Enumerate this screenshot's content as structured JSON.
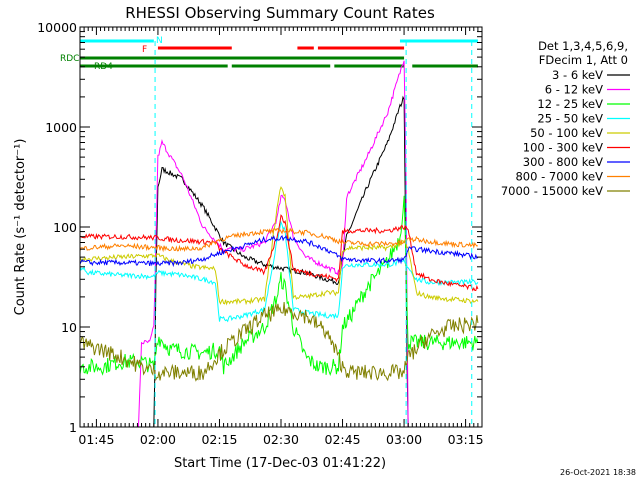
{
  "chart_data": {
    "type": "line",
    "title": "RHESSI Observing Summary Count Rates",
    "xlabel": "Start Time (17-Dec-03 01:41:22)",
    "ylabel": "Count Rate (s⁻¹ detector⁻¹)",
    "ylim": [
      1,
      10000
    ],
    "yscale": "log",
    "xlim_minutes": [
      0,
      98
    ],
    "x_ticks": [
      {
        "m": 4,
        "label": "01:45"
      },
      {
        "m": 19,
        "label": "02:00"
      },
      {
        "m": 34,
        "label": "02:15"
      },
      {
        "m": 49,
        "label": "02:30"
      },
      {
        "m": 64,
        "label": "02:45"
      },
      {
        "m": 79,
        "label": "03:00"
      },
      {
        "m": 94,
        "label": "03:15"
      }
    ],
    "y_ticks": [
      {
        "v": 1,
        "label": "1"
      },
      {
        "v": 10,
        "label": "10"
      },
      {
        "v": 100,
        "label": "100"
      },
      {
        "v": 1000,
        "label": "1000"
      },
      {
        "v": 10000,
        "label": "10000"
      }
    ],
    "legend_header": [
      "Det 1,3,4,5,6,9,",
      "FDecim 1, Att 0"
    ],
    "series": [
      {
        "name": "3 - 6 keV",
        "color": "#000000",
        "x": [
          0,
          17,
          18,
          18.5,
          19,
          20,
          25,
          30,
          35,
          40,
          45,
          50,
          55,
          60,
          63,
          65,
          70,
          75,
          78,
          79,
          80,
          81,
          85,
          90,
          97
        ],
        "y": [
          0,
          0,
          0,
          30,
          250,
          380,
          300,
          160,
          70,
          50,
          42,
          38,
          35,
          30,
          28,
          80,
          250,
          700,
          1600,
          2000,
          0,
          0,
          0,
          0,
          0
        ]
      },
      {
        "name": "6 - 12 keV",
        "color": "#ff00ff",
        "x": [
          0,
          14,
          15,
          17,
          18,
          19,
          20,
          25,
          30,
          35,
          40,
          45,
          48,
          49,
          50,
          52,
          55,
          60,
          63,
          64,
          65,
          70,
          75,
          78,
          79,
          79.5,
          80,
          97
        ],
        "y": [
          0,
          0,
          7,
          7,
          10,
          500,
          700,
          320,
          100,
          60,
          60,
          70,
          120,
          200,
          190,
          80,
          50,
          40,
          35,
          40,
          200,
          500,
          1400,
          3500,
          4800,
          300,
          0,
          0
        ]
      },
      {
        "name": "12 - 25 keV",
        "color": "#00ff00",
        "x": [
          0,
          2,
          5,
          10,
          15,
          18,
          19,
          22,
          30,
          34,
          35,
          40,
          45,
          48,
          49,
          50,
          52,
          55,
          58,
          60,
          63,
          64,
          66,
          70,
          75,
          78,
          79,
          80,
          82,
          85,
          90,
          97
        ],
        "y": [
          4,
          4,
          4,
          4.5,
          4.5,
          4,
          8,
          6,
          5.5,
          6,
          4,
          7,
          10,
          20,
          30,
          25,
          10,
          5,
          4,
          4,
          4,
          10,
          13,
          25,
          45,
          80,
          200,
          7,
          7,
          7,
          7,
          7
        ]
      },
      {
        "name": "25 - 50 keV",
        "color": "#00ffff",
        "x": [
          0,
          2,
          10,
          18,
          19,
          25,
          30,
          33,
          34,
          36,
          40,
          45,
          48,
          49,
          50,
          52,
          55,
          60,
          63,
          64,
          66,
          70,
          75,
          79,
          80,
          82,
          85,
          90,
          97
        ],
        "y": [
          40,
          35,
          33,
          32,
          35,
          33,
          30,
          28,
          12,
          12,
          13,
          15,
          70,
          110,
          90,
          15,
          14,
          13,
          13,
          40,
          42,
          42,
          42,
          45,
          40,
          30,
          28,
          28,
          28
        ]
      },
      {
        "name": "50 - 100 keV",
        "color": "#cccc00",
        "x": [
          0,
          2,
          10,
          19,
          22,
          28,
          33,
          34,
          40,
          45,
          48,
          49,
          50,
          52,
          55,
          60,
          63,
          64,
          66,
          70,
          75,
          79,
          80,
          82,
          85,
          90,
          97
        ],
        "y": [
          48,
          48,
          50,
          52,
          46,
          40,
          38,
          18,
          18,
          19,
          150,
          260,
          200,
          20,
          20,
          22,
          22,
          60,
          62,
          62,
          62,
          70,
          60,
          22,
          20,
          19,
          18
        ]
      },
      {
        "name": "100 - 300 keV",
        "color": "#ff0000",
        "x": [
          0,
          2,
          10,
          19,
          22,
          28,
          33,
          34,
          40,
          45,
          48,
          49,
          50,
          52,
          55,
          60,
          63,
          64,
          66,
          70,
          75,
          79,
          80,
          82,
          85,
          90,
          97
        ],
        "y": [
          80,
          80,
          80,
          78,
          75,
          72,
          70,
          60,
          42,
          35,
          80,
          130,
          110,
          38,
          35,
          32,
          30,
          90,
          92,
          92,
          92,
          100,
          95,
          35,
          30,
          27,
          24
        ]
      },
      {
        "name": "300 - 800 keV",
        "color": "#0000ff",
        "x": [
          0,
          2,
          10,
          19,
          25,
          30,
          34,
          40,
          45,
          50,
          55,
          60,
          64,
          70,
          75,
          79,
          80,
          82,
          85,
          90,
          97
        ],
        "y": [
          45,
          44,
          44,
          43,
          44,
          48,
          55,
          65,
          75,
          78,
          72,
          60,
          48,
          46,
          46,
          47,
          60,
          60,
          58,
          55,
          50
        ]
      },
      {
        "name": "800 - 7000 keV",
        "color": "#ff8000",
        "x": [
          0,
          2,
          10,
          19,
          25,
          30,
          34,
          40,
          45,
          50,
          55,
          60,
          64,
          70,
          75,
          79,
          80,
          82,
          85,
          90,
          97
        ],
        "y": [
          60,
          62,
          65,
          62,
          60,
          62,
          75,
          85,
          90,
          92,
          88,
          80,
          70,
          68,
          68,
          70,
          75,
          75,
          72,
          68,
          65
        ]
      },
      {
        "name": "7000 - 15000 keV",
        "color": "#808000",
        "x": [
          0,
          2,
          5,
          10,
          15,
          19,
          25,
          30,
          35,
          40,
          45,
          50,
          55,
          60,
          63,
          64,
          66,
          70,
          75,
          79,
          80,
          82,
          85,
          90,
          97
        ],
        "y": [
          7,
          6.5,
          6,
          5,
          4,
          3.5,
          3.5,
          3.5,
          6,
          9,
          13,
          15,
          13,
          9,
          5,
          4,
          3.5,
          3.5,
          3.5,
          3.5,
          5,
          6,
          8,
          10,
          11
        ]
      }
    ],
    "flag_bars": [
      {
        "label": "N",
        "color": "#00ffff",
        "segments": [
          [
            0,
            18
          ],
          [
            78,
            97
          ]
        ]
      },
      {
        "label": "F",
        "color": "#ff0000",
        "segments": [
          [
            19,
            37
          ],
          [
            53,
            57
          ],
          [
            58,
            79
          ]
        ]
      },
      {
        "label": "RDC",
        "color": "#008000",
        "segments": [
          [
            0,
            79
          ]
        ]
      },
      {
        "label": "RD4",
        "color": "#008000",
        "segments": [
          [
            0,
            36
          ],
          [
            37,
            61
          ],
          [
            62,
            79
          ],
          [
            81,
            97
          ]
        ]
      }
    ],
    "dashed_lines_minutes": [
      18.3,
      79.5,
      95.5
    ]
  },
  "footer_timestamp": "26-Oct-2021 18:38"
}
